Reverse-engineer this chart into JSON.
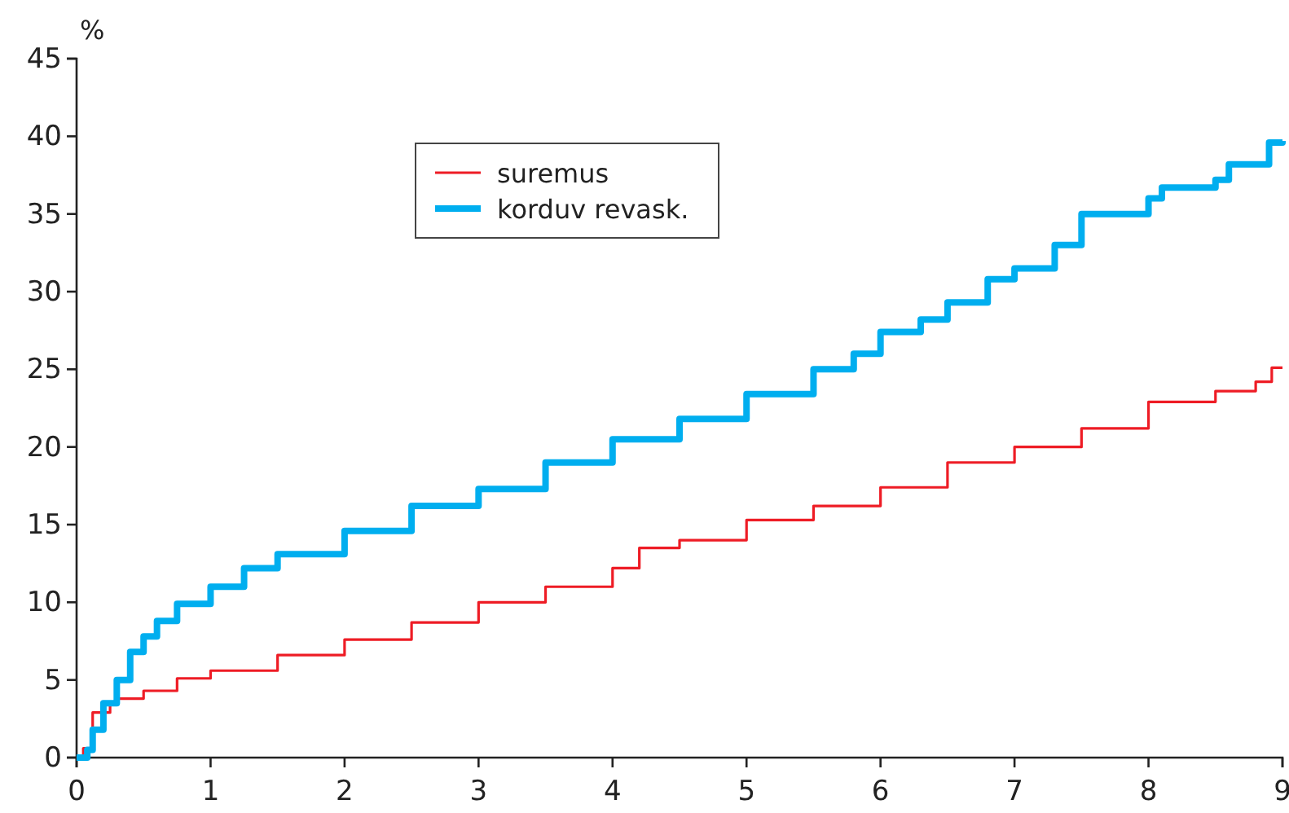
{
  "chart_data": {
    "type": "step",
    "ylabel": "%",
    "xlim": [
      0,
      9
    ],
    "ylim": [
      0,
      45
    ],
    "xticks": [
      0,
      1,
      2,
      3,
      4,
      5,
      6,
      7,
      8,
      9
    ],
    "yticks": [
      0,
      5,
      10,
      15,
      20,
      25,
      30,
      35,
      40,
      45
    ],
    "grid": false,
    "legend": "top",
    "line_style": "solid",
    "series": [
      {
        "name": "suremus",
        "color": "#ee1c25",
        "x": [
          0,
          0.05,
          0.12,
          0.25,
          0.3,
          0.5,
          0.75,
          1,
          1.5,
          2,
          2.5,
          3,
          3.5,
          4,
          4.2,
          4.5,
          5,
          5.5,
          6,
          6.5,
          7,
          7.5,
          8,
          8.5,
          8.8,
          8.92,
          9
        ],
        "values": [
          0,
          0.6,
          2.9,
          3.4,
          3.8,
          4.3,
          5.1,
          5.6,
          6.6,
          7.6,
          8.7,
          10.0,
          11.0,
          12.2,
          13.5,
          14.0,
          15.3,
          16.2,
          17.4,
          19.0,
          20.0,
          21.2,
          22.9,
          23.6,
          24.2,
          25.1,
          25.1
        ]
      },
      {
        "name": "korduv revask.",
        "color": "#00aeef",
        "x": [
          0,
          0.08,
          0.12,
          0.2,
          0.3,
          0.4,
          0.5,
          0.6,
          0.75,
          1,
          1.25,
          1.5,
          2,
          2.5,
          3,
          3.5,
          4,
          4.5,
          5,
          5.5,
          5.8,
          6,
          6.3,
          6.5,
          6.8,
          7,
          7.3,
          7.5,
          8,
          8.1,
          8.5,
          8.6,
          8.9,
          9
        ],
        "values": [
          0,
          0.5,
          1.8,
          3.5,
          5.0,
          6.8,
          7.8,
          8.8,
          9.9,
          11.0,
          12.2,
          13.1,
          14.6,
          16.2,
          17.3,
          19.0,
          20.5,
          21.8,
          23.4,
          25.0,
          26.0,
          27.4,
          28.2,
          29.3,
          30.8,
          31.5,
          33.0,
          35.0,
          36.0,
          36.7,
          37.2,
          38.2,
          39.6,
          39.7
        ]
      }
    ]
  }
}
